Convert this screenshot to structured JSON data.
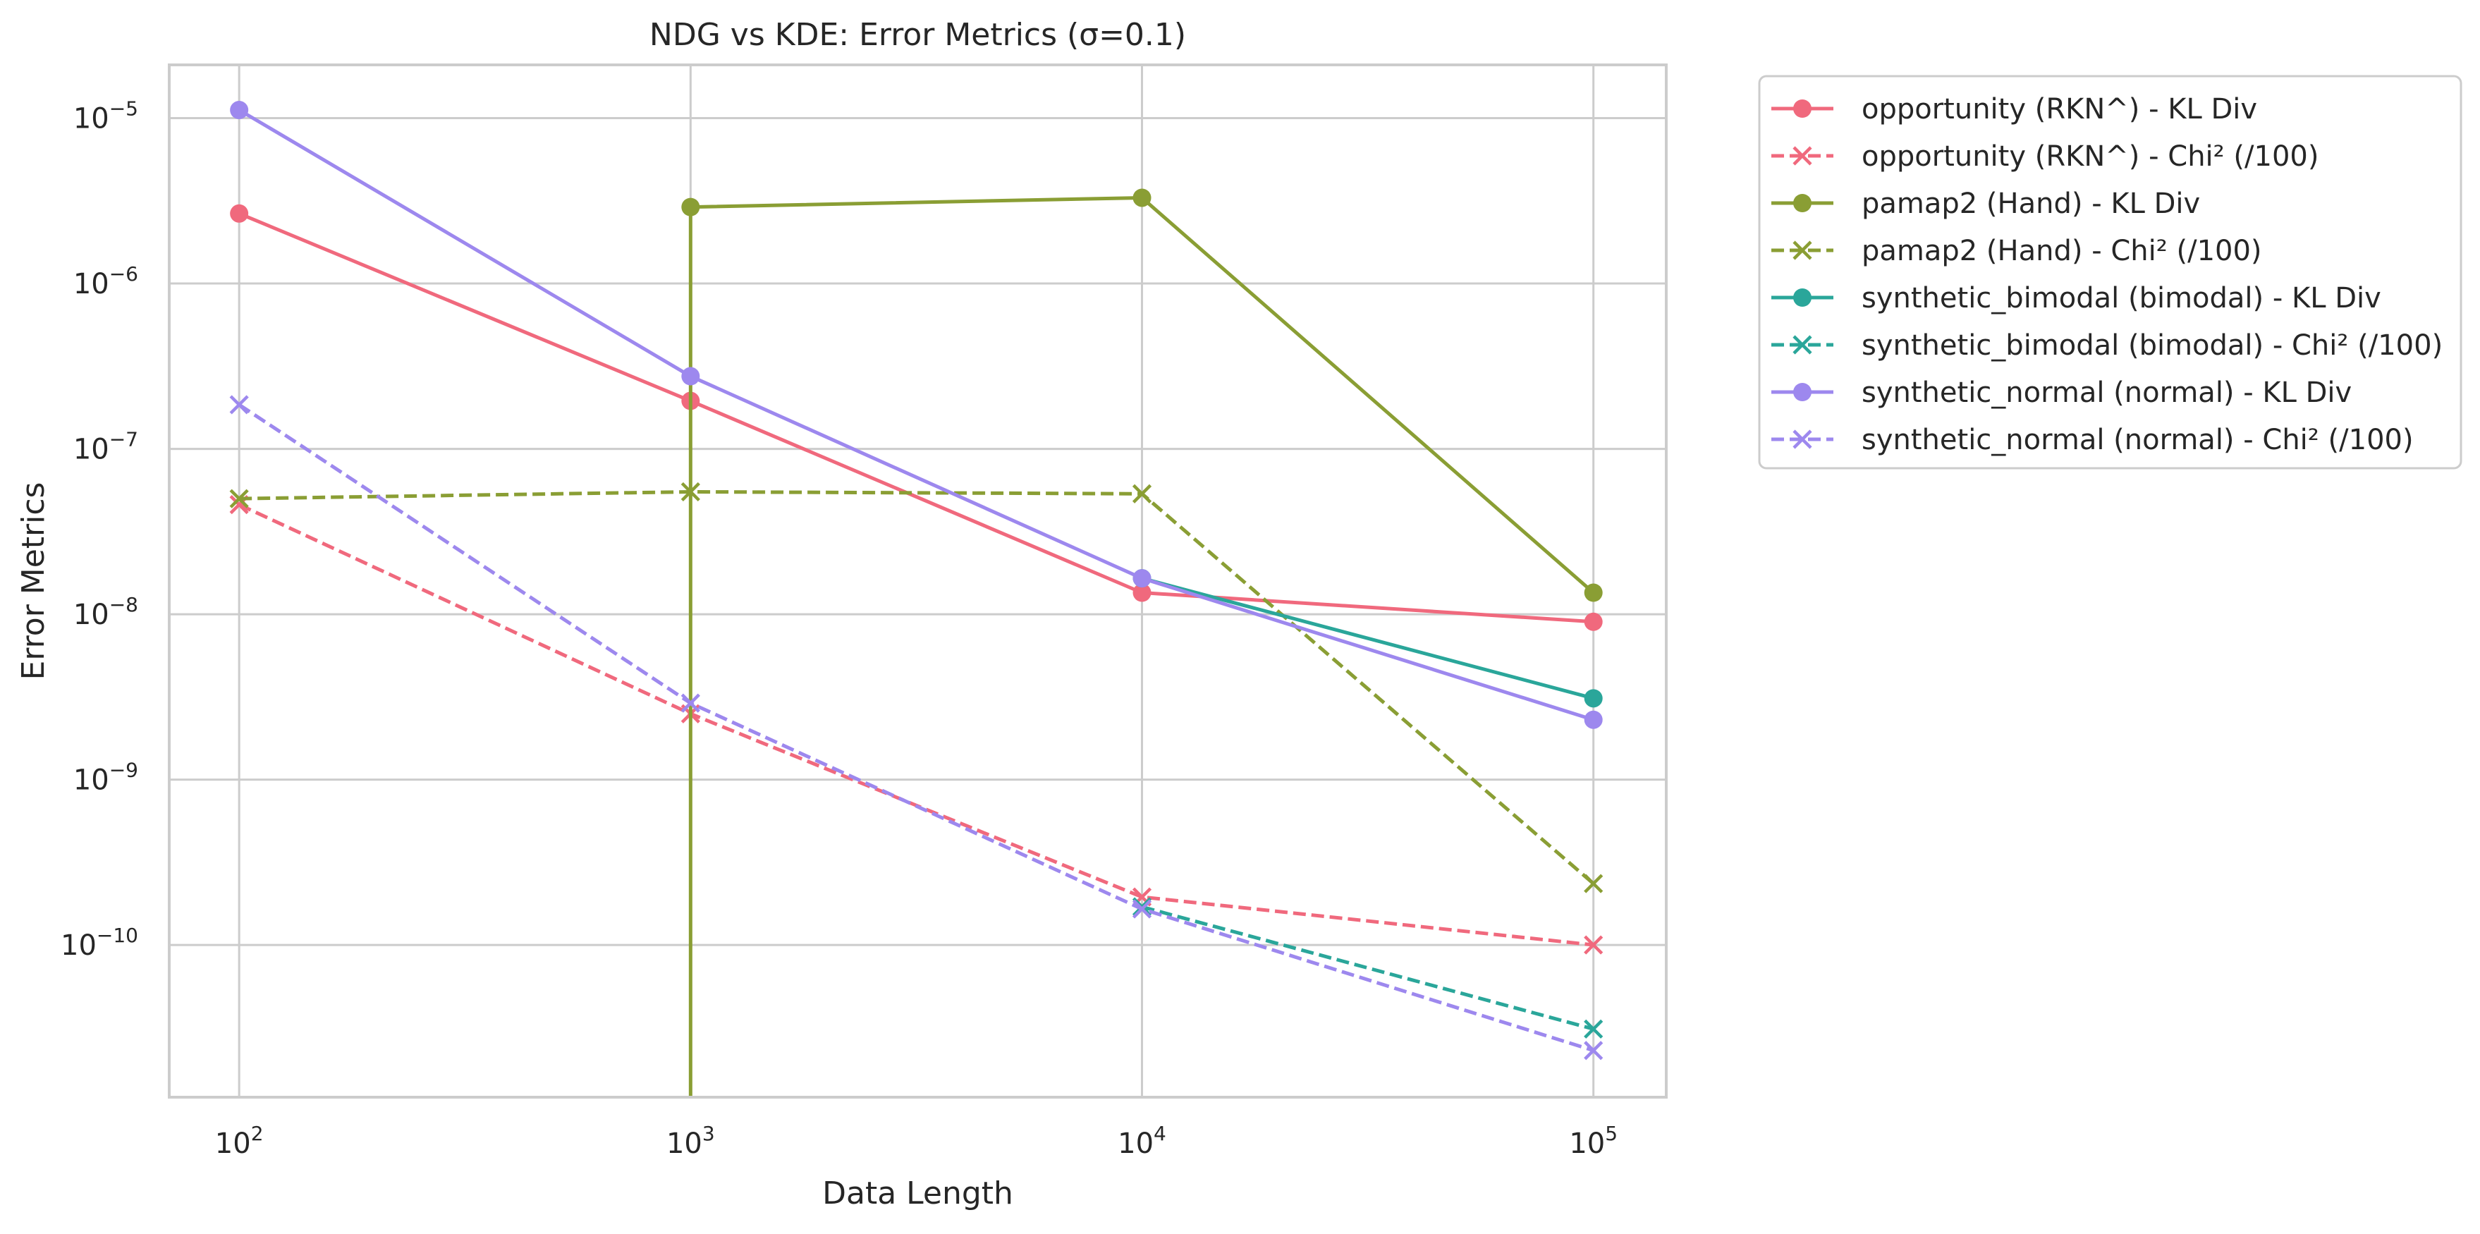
{
  "chart_data": {
    "type": "line",
    "title": "NDG vs KDE: Error Metrics (σ=0.1)",
    "xlabel": "Data Length",
    "ylabel": "Error Metrics",
    "xscale": "log",
    "yscale": "log",
    "x": [
      100,
      1000,
      10000,
      100000
    ],
    "xticks": [
      {
        "base": "10",
        "exp": "2"
      },
      {
        "base": "10",
        "exp": "3"
      },
      {
        "base": "10",
        "exp": "4"
      },
      {
        "base": "10",
        "exp": "5"
      }
    ],
    "yticks": [
      {
        "base": "10",
        "exp": "−5"
      },
      {
        "base": "10",
        "exp": "−6"
      },
      {
        "base": "10",
        "exp": "−7"
      },
      {
        "base": "10",
        "exp": "−8"
      },
      {
        "base": "10",
        "exp": "−9"
      },
      {
        "base": "10",
        "exp": "−10"
      }
    ],
    "xlim": [
      70,
      145000
    ],
    "ylim": [
      1.2e-11,
      2.1e-05
    ],
    "grid": true,
    "legend": "outside upper right",
    "series": [
      {
        "name": "opportunity (RKN^) - KL Div",
        "color": "#f0697d",
        "dash": "solid",
        "marker": "circle",
        "values": [
          2.65e-06,
          1.95e-07,
          1.35e-08,
          9e-09
        ]
      },
      {
        "name": "opportunity (RKN^) - Chi² (/100)",
        "color": "#f0697d",
        "dash": "dashed",
        "marker": "x",
        "values": [
          4.6e-08,
          2.5e-09,
          1.95e-10,
          1e-10
        ]
      },
      {
        "name": "pamap2 (Hand) - KL Div",
        "color": "#8a9e34",
        "dash": "solid",
        "marker": "circle",
        "values": [
          null,
          2.9e-06,
          3.3e-06,
          1.35e-08
        ],
        "drop_to_zero_at_start": true
      },
      {
        "name": "pamap2 (Hand) - Chi² (/100)",
        "color": "#8a9e34",
        "dash": "dashed",
        "marker": "x",
        "values": [
          5e-08,
          5.5e-08,
          5.35e-08,
          2.35e-10
        ]
      },
      {
        "name": "synthetic_bimodal (bimodal) - KL Div",
        "color": "#2aa69a",
        "dash": "solid",
        "marker": "circle",
        "values": [
          null,
          null,
          1.65e-08,
          3.1e-09
        ]
      },
      {
        "name": "synthetic_bimodal (bimodal) - Chi² (/100)",
        "color": "#2aa69a",
        "dash": "dashed",
        "marker": "x",
        "values": [
          null,
          null,
          1.7e-10,
          3.1e-11
        ]
      },
      {
        "name": "synthetic_normal (normal) - KL Div",
        "color": "#9d88ee",
        "dash": "solid",
        "marker": "circle",
        "values": [
          1.12e-05,
          2.75e-07,
          1.65e-08,
          2.3e-09
        ]
      },
      {
        "name": "synthetic_normal (normal) - Chi² (/100)",
        "color": "#9d88ee",
        "dash": "dashed",
        "marker": "x",
        "values": [
          1.85e-07,
          2.9e-09,
          1.65e-10,
          2.3e-11
        ]
      }
    ]
  }
}
